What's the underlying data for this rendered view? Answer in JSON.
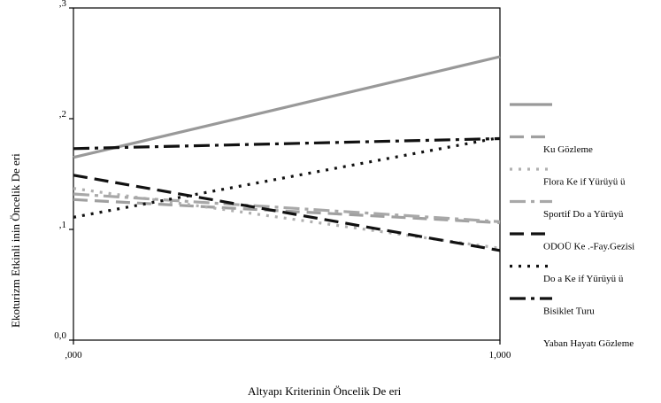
{
  "chart_data": {
    "type": "line",
    "xlabel": "Altyapı Kriterinin Öncelik De eri",
    "ylabel": "Ekoturizm Etkinli inin Öncelik De eri",
    "xlim": [
      0,
      1
    ],
    "ylim": [
      0,
      0.3
    ],
    "x_ticks": [
      ",000",
      "1,000"
    ],
    "y_ticks": [
      "0,0",
      ",1",
      ",2",
      ",3"
    ],
    "y_tick_values": [
      0,
      0.1,
      0.2,
      0.3
    ],
    "grid": false,
    "legend_position": "right",
    "series": [
      {
        "name": "Ku  Gözleme",
        "x": [
          0,
          1
        ],
        "y": [
          0.165,
          0.256
        ],
        "color": "#999999",
        "dash": "solid"
      },
      {
        "name": "Flora Ke if Yürüyü ü",
        "x": [
          0,
          1
        ],
        "y": [
          0.127,
          0.106
        ],
        "color": "#a0a0a0",
        "dash": "longdash"
      },
      {
        "name": "Sportif Do a Yürüyü",
        "x": [
          0,
          1
        ],
        "y": [
          0.137,
          0.083
        ],
        "color": "#b0b0b0",
        "dash": "dot"
      },
      {
        "name": "ODOÜ Ke .-Fay.Gezisi",
        "x": [
          0,
          1
        ],
        "y": [
          0.132,
          0.107
        ],
        "color": "#a8a8a8",
        "dash": "dashdot"
      },
      {
        "name": "Do a Ke if Yürüyü ü",
        "x": [
          0,
          1
        ],
        "y": [
          0.149,
          0.081
        ],
        "color": "#111111",
        "dash": "longdash"
      },
      {
        "name": "Bisiklet Turu",
        "x": [
          0,
          1
        ],
        "y": [
          0.111,
          0.183
        ],
        "color": "#111111",
        "dash": "dot"
      },
      {
        "name": "Yaban Hayatı Gözleme",
        "x": [
          0,
          1
        ],
        "y": [
          0.173,
          0.182
        ],
        "color": "#111111",
        "dash": "dashdot"
      }
    ]
  }
}
